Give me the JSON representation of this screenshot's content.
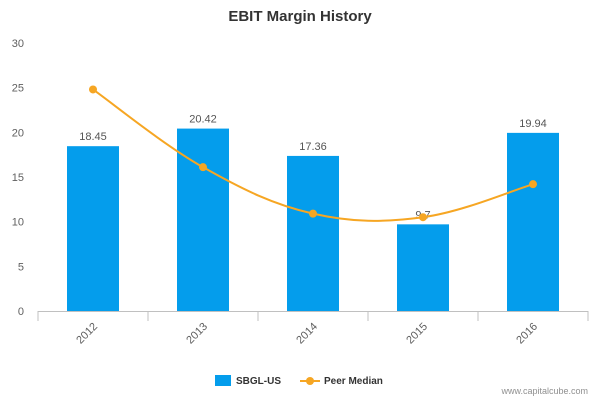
{
  "chart_data": {
    "type": "bar",
    "title": "EBIT Margin History",
    "categories": [
      "2012",
      "2013",
      "2014",
      "2015",
      "2016"
    ],
    "yticks": [
      "0",
      "5",
      "10",
      "15",
      "20",
      "25",
      "30"
    ],
    "ylim": [
      0,
      30
    ],
    "series": [
      {
        "name": "SBGL-US",
        "type": "bar",
        "values": [
          18.45,
          20.42,
          17.36,
          9.7,
          19.94
        ],
        "labels": [
          "18.45",
          "20.42",
          "17.36",
          "9.7",
          "19.94"
        ]
      },
      {
        "name": "Peer Median",
        "type": "line",
        "values": [
          24.8,
          16.1,
          10.9,
          10.5,
          14.2
        ]
      }
    ],
    "grid": false,
    "legend_position": "bottom-center",
    "colors": {
      "bar": "#049dec",
      "line": "#f6a623",
      "axis": "#c0c0c0"
    }
  },
  "credit": "www.capitalcube.com"
}
